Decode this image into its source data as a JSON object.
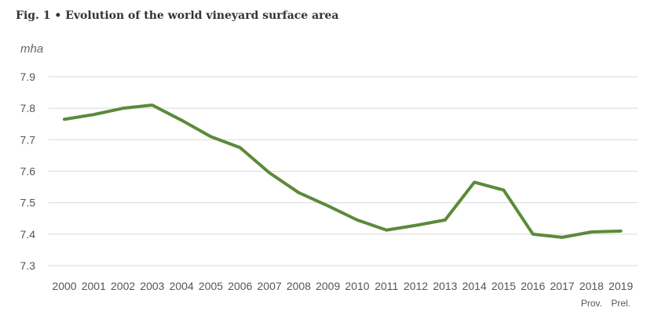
{
  "chart_data": {
    "type": "line",
    "title": "Fig. 1 • Evolution of the world vineyard surface area",
    "ylabel": "mha",
    "xlabel": "",
    "ylim": [
      7.3,
      7.9
    ],
    "yticks": [
      "7.3",
      "7.4",
      "7.5",
      "7.6",
      "7.7",
      "7.8",
      "7.9"
    ],
    "grid": true,
    "categories": [
      "2000",
      "2001",
      "2002",
      "2003",
      "2004",
      "2005",
      "2006",
      "2007",
      "2008",
      "2009",
      "2010",
      "2011",
      "2012",
      "2013",
      "2014",
      "2015",
      "2016",
      "2017",
      "2018",
      "2019"
    ],
    "sublabels": {
      "2018": "Prov.",
      "2019": "Prel."
    },
    "series": [
      {
        "color": "#5b8a3a",
        "values": [
          7.765,
          7.78,
          7.8,
          7.81,
          7.762,
          7.71,
          7.675,
          7.595,
          7.532,
          7.49,
          7.445,
          7.413,
          7.428,
          7.445,
          7.565,
          7.54,
          7.4,
          7.39,
          7.407,
          7.41
        ]
      }
    ]
  }
}
